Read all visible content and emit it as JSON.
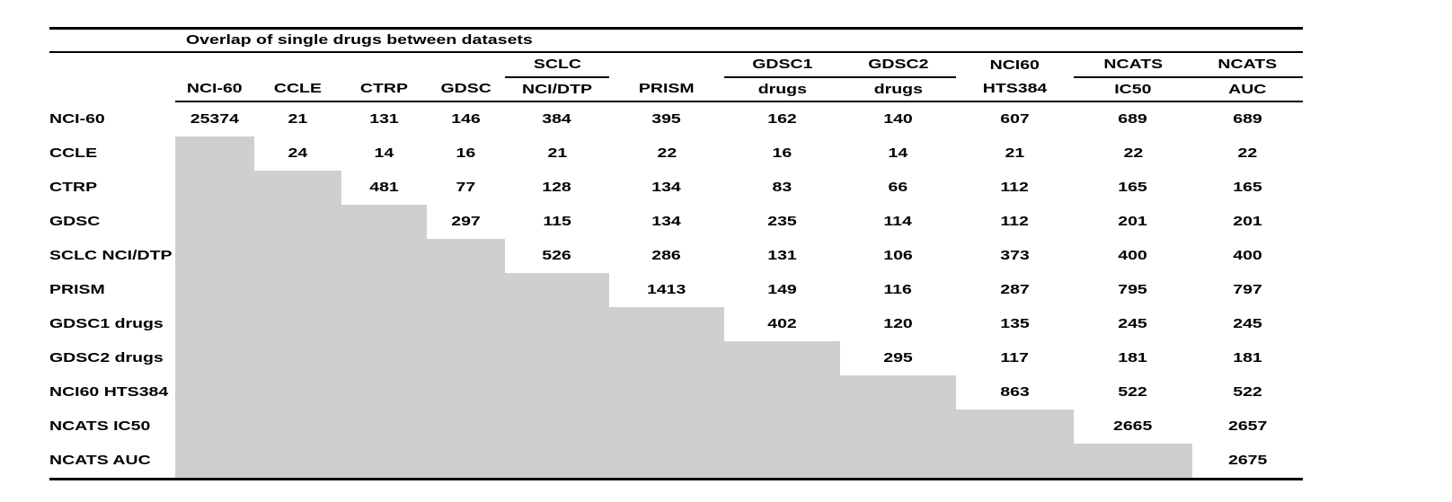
{
  "title": "Overlap of single drugs between datasets",
  "columns": [
    {
      "top": "",
      "bottom": "NCI-60",
      "group_underline": false
    },
    {
      "top": "",
      "bottom": "CCLE",
      "group_underline": false
    },
    {
      "top": "",
      "bottom": "CTRP",
      "group_underline": false
    },
    {
      "top": "",
      "bottom": "GDSC",
      "group_underline": false
    },
    {
      "top": "SCLC",
      "bottom": "NCI/DTP",
      "group_underline": true
    },
    {
      "top": "",
      "bottom": "PRISM",
      "group_underline": false
    },
    {
      "top": "GDSC1",
      "bottom": "drugs",
      "group_underline": true
    },
    {
      "top": "GDSC2",
      "bottom": "drugs",
      "group_underline": true
    },
    {
      "top": "NCI60",
      "bottom": "HTS384",
      "group_underline": false
    },
    {
      "top": "NCATS",
      "bottom": "IC50",
      "group_underline": true
    },
    {
      "top": "NCATS",
      "bottom": "AUC",
      "group_underline": true
    }
  ],
  "rows": [
    {
      "label": "NCI-60",
      "values": [
        25374,
        21,
        131,
        146,
        384,
        395,
        162,
        140,
        607,
        689,
        689
      ]
    },
    {
      "label": "CCLE",
      "values": [
        null,
        24,
        14,
        16,
        21,
        22,
        16,
        14,
        21,
        22,
        22
      ]
    },
    {
      "label": "CTRP",
      "values": [
        null,
        null,
        481,
        77,
        128,
        134,
        83,
        66,
        112,
        165,
        165
      ]
    },
    {
      "label": "GDSC",
      "values": [
        null,
        null,
        null,
        297,
        115,
        134,
        235,
        114,
        112,
        201,
        201
      ]
    },
    {
      "label": "SCLC NCI/DTP",
      "values": [
        null,
        null,
        null,
        null,
        526,
        286,
        131,
        106,
        373,
        400,
        400
      ]
    },
    {
      "label": "PRISM",
      "values": [
        null,
        null,
        null,
        null,
        null,
        1413,
        149,
        116,
        287,
        795,
        797
      ]
    },
    {
      "label": "GDSC1 drugs",
      "values": [
        null,
        null,
        null,
        null,
        null,
        null,
        402,
        120,
        135,
        245,
        245
      ]
    },
    {
      "label": "GDSC2 drugs",
      "values": [
        null,
        null,
        null,
        null,
        null,
        null,
        null,
        295,
        117,
        181,
        181
      ]
    },
    {
      "label": "NCI60 HTS384",
      "values": [
        null,
        null,
        null,
        null,
        null,
        null,
        null,
        null,
        863,
        522,
        522
      ]
    },
    {
      "label": "NCATS IC50",
      "values": [
        null,
        null,
        null,
        null,
        null,
        null,
        null,
        null,
        null,
        2665,
        2657
      ]
    },
    {
      "label": "NCATS AUC",
      "values": [
        null,
        null,
        null,
        null,
        null,
        null,
        null,
        null,
        null,
        null,
        2675
      ]
    }
  ],
  "style": {
    "shaded_cell_color": "#cfcfcf",
    "rule_color": "#000000",
    "text_color": "#000000",
    "background_color": "#ffffff"
  }
}
